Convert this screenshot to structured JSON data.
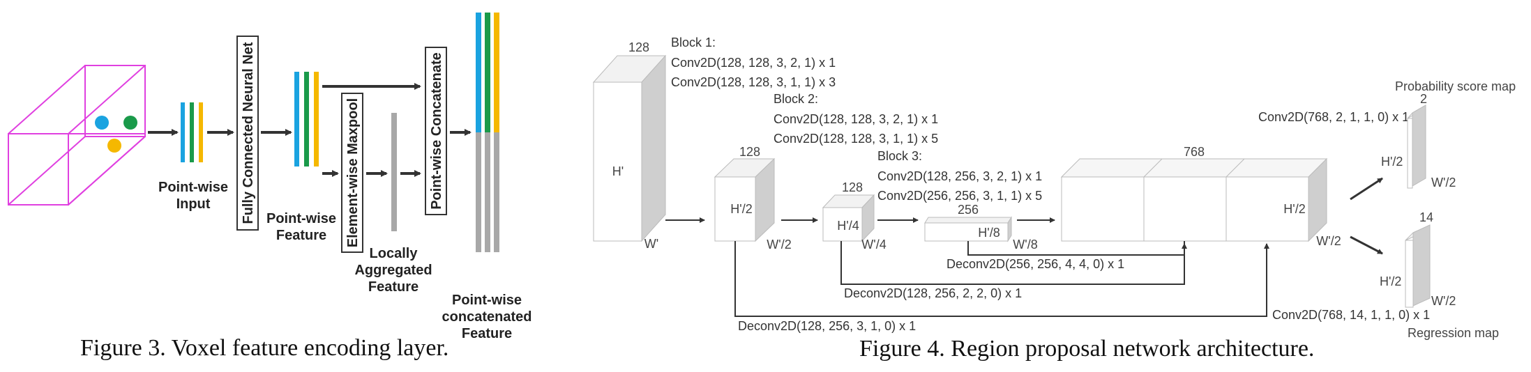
{
  "figure3": {
    "caption": "Figure 3. Voxel feature encoding layer.",
    "labels": {
      "pointwise_input_1": "Point-wise",
      "pointwise_input_2": "Input",
      "fcn": "Fully Connected Neural Net",
      "pointwise_feature_1": "Point-wise",
      "pointwise_feature_2": "Feature",
      "maxpool": "Element-wise Maxpool",
      "local_agg_1": "Locally",
      "local_agg_2": "Aggregated",
      "local_agg_3": "Feature",
      "concat": "Point-wise Concatenate",
      "concat_feat_1": "Point-wise",
      "concat_feat_2": "concatenated",
      "concat_feat_3": "Feature"
    },
    "colors": {
      "voxel": "#e040e0",
      "blue": "#1aa3e0",
      "green": "#1a9a4a",
      "yellow": "#f5b800",
      "gray": "#a8a8a8"
    }
  },
  "figure4": {
    "caption": "Figure 4. Region proposal network architecture.",
    "input_block": {
      "channels": "128",
      "height": "H'",
      "width": "W'"
    },
    "block1": {
      "title": "Block 1:",
      "op1": "Conv2D(128, 128, 3, 2, 1) x 1",
      "op2": "Conv2D(128, 128, 3, 1, 1) x 3",
      "channels": "128",
      "height": "H'/2",
      "width": "W'/2"
    },
    "block2": {
      "title": "Block 2:",
      "op1": "Conv2D(128, 128, 3, 2, 1) x 1",
      "op2": "Conv2D(128, 128, 3, 1, 1) x 5",
      "channels": "128",
      "height": "H'/4",
      "width": "W'/4"
    },
    "block3": {
      "title": "Block 3:",
      "op1": "Conv2D(128, 256, 3, 2, 1) x 1",
      "op2": "Conv2D(256, 256, 3, 1, 1) x 5",
      "channels": "256",
      "height": "H'/8",
      "width": "W'/8"
    },
    "concat_block": {
      "channels": "768",
      "height": "H'/2",
      "width": "W'/2"
    },
    "deconv1": "Deconv2D(256, 256, 4, 4, 0) x 1",
    "deconv2": "Deconv2D(128, 256, 2, 2, 0) x 1",
    "deconv3": "Deconv2D(128, 256, 3, 1, 0) x 1",
    "prob_head": {
      "title": "Probability score map",
      "op": "Conv2D(768, 2, 1, 1, 0) x 1",
      "channels": "2",
      "height": "H'/2",
      "width": "W'/2"
    },
    "reg_head": {
      "title": "Regression map",
      "op": "Conv2D(768, 14, 1, 1, 0) x 1",
      "channels": "14",
      "height": "H'/2",
      "width": "W'/2"
    }
  }
}
